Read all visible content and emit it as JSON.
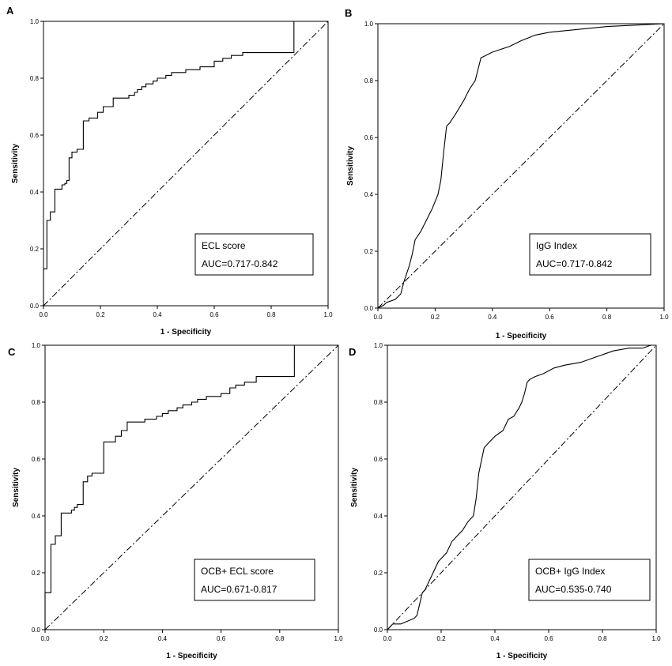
{
  "chart_data": [
    {
      "type": "line",
      "panel_label": "A",
      "xlabel": "1 - Specificity",
      "ylabel": "Sensitivity",
      "xlim": [
        0,
        1
      ],
      "ylim": [
        0,
        1
      ],
      "xticks": [
        "0.0",
        "0.2",
        "0.4",
        "0.6",
        "0.8",
        "1.0"
      ],
      "yticks": [
        "0.0",
        "0.2",
        "0.4",
        "0.6",
        "0.8",
        "1.0"
      ],
      "legend": {
        "position": "bottom-right",
        "name": "ECL score",
        "auc": "AUC=0.717-0.842"
      },
      "reference_line": {
        "name": "chance",
        "x": [
          0,
          1
        ],
        "y": [
          0,
          1
        ],
        "style": "dash-dot"
      },
      "series": [
        {
          "name": "ECL score",
          "x": [
            0,
            0,
            0.012,
            0.012,
            0.024,
            0.024,
            0.04,
            0.04,
            0.065,
            0.065,
            0.075,
            0.075,
            0.082,
            0.082,
            0.09,
            0.09,
            0.1,
            0.1,
            0.118,
            0.118,
            0.14,
            0.14,
            0.16,
            0.16,
            0.19,
            0.19,
            0.21,
            0.21,
            0.245,
            0.245,
            0.3,
            0.3,
            0.32,
            0.32,
            0.33,
            0.33,
            0.345,
            0.345,
            0.36,
            0.36,
            0.385,
            0.385,
            0.4,
            0.4,
            0.43,
            0.43,
            0.45,
            0.45,
            0.5,
            0.5,
            0.55,
            0.55,
            0.6,
            0.6,
            0.63,
            0.63,
            0.66,
            0.66,
            0.7,
            0.7,
            0.88,
            0.88,
            1.0
          ],
          "y": [
            0,
            0.13,
            0.13,
            0.3,
            0.3,
            0.33,
            0.33,
            0.41,
            0.41,
            0.425,
            0.425,
            0.43,
            0.43,
            0.44,
            0.44,
            0.52,
            0.52,
            0.54,
            0.54,
            0.55,
            0.55,
            0.65,
            0.65,
            0.66,
            0.66,
            0.68,
            0.68,
            0.7,
            0.7,
            0.73,
            0.73,
            0.74,
            0.74,
            0.75,
            0.75,
            0.76,
            0.76,
            0.77,
            0.77,
            0.78,
            0.78,
            0.79,
            0.79,
            0.8,
            0.8,
            0.81,
            0.81,
            0.82,
            0.82,
            0.83,
            0.83,
            0.84,
            0.84,
            0.86,
            0.86,
            0.87,
            0.87,
            0.88,
            0.88,
            0.89,
            0.89,
            1.0,
            1.0
          ]
        }
      ]
    },
    {
      "type": "line",
      "panel_label": "B",
      "xlabel": "1 - Specificity",
      "ylabel": "Sensitivity",
      "xlim": [
        0,
        1
      ],
      "ylim": [
        0,
        1
      ],
      "xticks": [
        "0.0",
        "0.2",
        "0.4",
        "0.6",
        "0.8",
        "1.0"
      ],
      "yticks": [
        "0.0",
        "0.2",
        "0.4",
        "0.6",
        "0.8",
        "1.0"
      ],
      "legend": {
        "position": "bottom-right",
        "name": "IgG Index",
        "auc": "AUC=0.717-0.842"
      },
      "reference_line": {
        "name": "chance",
        "x": [
          0,
          1
        ],
        "y": [
          0,
          1
        ],
        "style": "dash-dot"
      },
      "series": [
        {
          "name": "IgG Index",
          "x": [
            0,
            0.02,
            0.03,
            0.06,
            0.08,
            0.09,
            0.1,
            0.11,
            0.12,
            0.13,
            0.15,
            0.17,
            0.19,
            0.21,
            0.22,
            0.23,
            0.24,
            0.25,
            0.27,
            0.3,
            0.32,
            0.34,
            0.35,
            0.36,
            0.38,
            0.4,
            0.43,
            0.46,
            0.5,
            0.55,
            0.6,
            0.7,
            0.8,
            0.9,
            1.0
          ],
          "y": [
            0,
            0.01,
            0.02,
            0.03,
            0.05,
            0.09,
            0.12,
            0.15,
            0.19,
            0.24,
            0.27,
            0.31,
            0.35,
            0.4,
            0.45,
            0.55,
            0.64,
            0.65,
            0.68,
            0.73,
            0.77,
            0.8,
            0.84,
            0.88,
            0.89,
            0.9,
            0.91,
            0.92,
            0.94,
            0.96,
            0.97,
            0.98,
            0.99,
            0.995,
            1.0
          ]
        }
      ]
    },
    {
      "type": "line",
      "panel_label": "C",
      "xlabel": "1 - Specificity",
      "ylabel": "Sensitivity",
      "xlim": [
        0,
        1
      ],
      "ylim": [
        0,
        1
      ],
      "xticks": [
        "0.0",
        "0.2",
        "0.4",
        "0.6",
        "0.8",
        "1.0"
      ],
      "yticks": [
        "0.0",
        "0.2",
        "0.4",
        "0.6",
        "0.8",
        "1.0"
      ],
      "legend": {
        "position": "bottom-right",
        "name": "OCB+ ECL score",
        "auc": "AUC=0.671-0.817"
      },
      "reference_line": {
        "name": "chance",
        "x": [
          0,
          1
        ],
        "y": [
          0,
          1
        ],
        "style": "dash-dot"
      },
      "series": [
        {
          "name": "OCB+ ECL score",
          "x": [
            0,
            0,
            0.02,
            0.02,
            0.035,
            0.035,
            0.055,
            0.055,
            0.09,
            0.09,
            0.1,
            0.1,
            0.11,
            0.11,
            0.13,
            0.13,
            0.145,
            0.145,
            0.16,
            0.16,
            0.2,
            0.2,
            0.24,
            0.24,
            0.26,
            0.26,
            0.28,
            0.28,
            0.34,
            0.34,
            0.38,
            0.38,
            0.4,
            0.4,
            0.42,
            0.42,
            0.45,
            0.45,
            0.47,
            0.47,
            0.5,
            0.5,
            0.52,
            0.52,
            0.55,
            0.55,
            0.6,
            0.6,
            0.63,
            0.63,
            0.65,
            0.65,
            0.68,
            0.68,
            0.72,
            0.72,
            0.85,
            0.85,
            1.0
          ],
          "y": [
            0,
            0.13,
            0.13,
            0.3,
            0.3,
            0.33,
            0.33,
            0.41,
            0.41,
            0.42,
            0.42,
            0.43,
            0.43,
            0.44,
            0.44,
            0.52,
            0.52,
            0.54,
            0.54,
            0.55,
            0.55,
            0.66,
            0.66,
            0.68,
            0.68,
            0.7,
            0.7,
            0.73,
            0.73,
            0.74,
            0.74,
            0.75,
            0.75,
            0.76,
            0.76,
            0.77,
            0.77,
            0.78,
            0.78,
            0.79,
            0.79,
            0.8,
            0.8,
            0.81,
            0.81,
            0.82,
            0.82,
            0.83,
            0.83,
            0.85,
            0.85,
            0.86,
            0.86,
            0.87,
            0.87,
            0.89,
            0.89,
            1.0,
            1.0
          ]
        }
      ]
    },
    {
      "type": "line",
      "panel_label": "D",
      "xlabel": "1 - Specificity",
      "ylabel": "Sensitivity",
      "xlim": [
        0,
        1
      ],
      "ylim": [
        0,
        1
      ],
      "xticks": [
        "0.0",
        "0.2",
        "0.4",
        "0.6",
        "0.8",
        "1.0"
      ],
      "yticks": [
        "0.0",
        "0.2",
        "0.4",
        "0.6",
        "0.8",
        "1.0"
      ],
      "legend": {
        "position": "bottom-right",
        "name": "OCB+ IgG Index",
        "auc": "AUC=0.535-0.740"
      },
      "reference_line": {
        "name": "chance",
        "x": [
          0,
          1
        ],
        "y": [
          0,
          1
        ],
        "style": "dash-dot"
      },
      "series": [
        {
          "name": "OCB+ IgG Index",
          "x": [
            0,
            0.01,
            0.02,
            0.05,
            0.1,
            0.11,
            0.12,
            0.13,
            0.14,
            0.15,
            0.17,
            0.19,
            0.22,
            0.24,
            0.26,
            0.28,
            0.3,
            0.32,
            0.33,
            0.34,
            0.36,
            0.38,
            0.4,
            0.43,
            0.45,
            0.47,
            0.49,
            0.5,
            0.51,
            0.52,
            0.53,
            0.55,
            0.58,
            0.62,
            0.66,
            0.72,
            0.78,
            0.84,
            0.9,
            0.95,
            0.98
          ],
          "y": [
            0,
            0.01,
            0.02,
            0.02,
            0.04,
            0.05,
            0.09,
            0.13,
            0.14,
            0.16,
            0.2,
            0.24,
            0.27,
            0.31,
            0.33,
            0.35,
            0.38,
            0.4,
            0.46,
            0.55,
            0.64,
            0.66,
            0.68,
            0.7,
            0.74,
            0.75,
            0.78,
            0.8,
            0.83,
            0.87,
            0.88,
            0.89,
            0.9,
            0.92,
            0.93,
            0.94,
            0.96,
            0.98,
            0.99,
            0.99,
            1.0
          ]
        }
      ]
    }
  ]
}
